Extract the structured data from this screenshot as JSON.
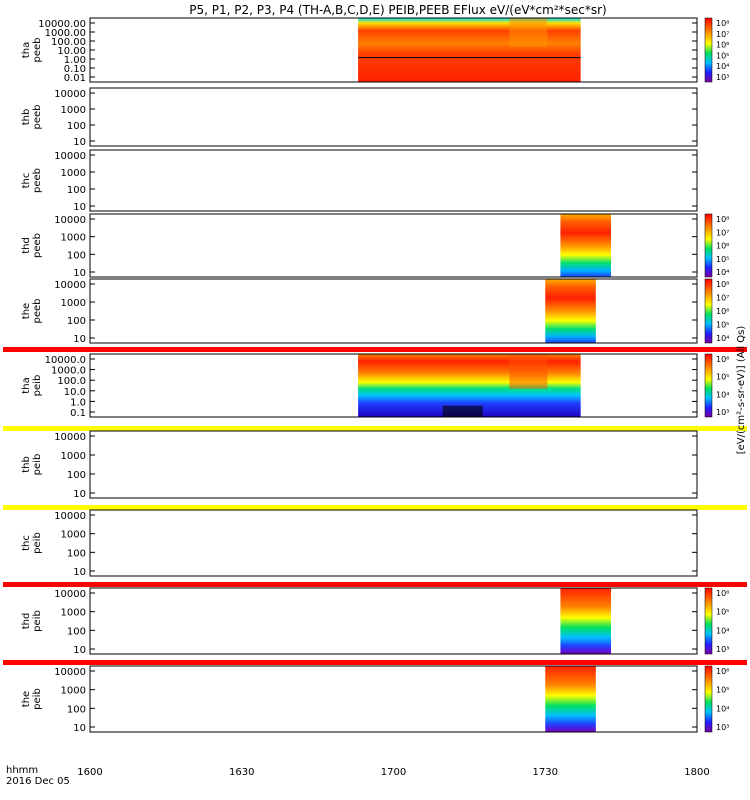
{
  "chart_data": {
    "type": "heatmap",
    "title": "P5, P1, P2, P3, P4 (TH-A,B,C,D,E) PEIB,PEEB EFlux eV/(eV*cm²*sec*sr)",
    "xlabel": "hhmm",
    "date_label": "2016 Dec 05",
    "x_ticks": [
      "1600",
      "1630",
      "1700",
      "1730",
      "1800"
    ],
    "x_range": [
      "16:00",
      "18:00"
    ],
    "colorbar_label": "[eV/(cm²-s-sr-eV)] (All Qs)",
    "panels": [
      {
        "probe": "tha",
        "product": "peeb",
        "y_ticks": [
          "10000.00",
          "1000.00",
          "100.00",
          "10.00",
          "1.00",
          "0.10",
          "0.01"
        ],
        "data_interval": [
          "16:53",
          "17:37"
        ],
        "colorbar_ticks": [
          "10⁸",
          "10⁷",
          "10⁶",
          "10⁵",
          "10⁴",
          "10³"
        ],
        "status_bar": ""
      },
      {
        "probe": "thb",
        "product": "peeb",
        "y_ticks": [
          "10000",
          "1000",
          "100",
          "10"
        ],
        "data_interval": null,
        "colorbar_ticks": [],
        "status_bar": ""
      },
      {
        "probe": "thc",
        "product": "peeb",
        "y_ticks": [
          "10000",
          "1000",
          "100",
          "10"
        ],
        "data_interval": null,
        "colorbar_ticks": [],
        "status_bar": ""
      },
      {
        "probe": "thd",
        "product": "peeb",
        "y_ticks": [
          "10000",
          "1000",
          "100",
          "10"
        ],
        "data_interval": [
          "17:33",
          "17:43"
        ],
        "colorbar_ticks": [
          "10⁸",
          "10⁷",
          "10⁶",
          "10⁵",
          "10⁴"
        ],
        "status_bar": ""
      },
      {
        "probe": "the",
        "product": "peeb",
        "y_ticks": [
          "10000",
          "1000",
          "100",
          "10"
        ],
        "data_interval": [
          "17:30",
          "17:40"
        ],
        "colorbar_ticks": [
          "10⁸",
          "10⁷",
          "10⁶",
          "10⁵",
          "10⁴"
        ],
        "status_bar": "red"
      },
      {
        "probe": "tha",
        "product": "peib",
        "y_ticks": [
          "10000.0",
          "1000.0",
          "100.0",
          "10.0",
          "1.0",
          "0.1"
        ],
        "data_interval": [
          "16:53",
          "17:37"
        ],
        "colorbar_ticks": [
          "10⁶",
          "10⁵",
          "10⁴",
          "10³"
        ],
        "status_bar": "yellow"
      },
      {
        "probe": "thb",
        "product": "peib",
        "y_ticks": [
          "10000",
          "1000",
          "100",
          "10"
        ],
        "data_interval": null,
        "colorbar_ticks": [],
        "status_bar": "yellow"
      },
      {
        "probe": "thc",
        "product": "peib",
        "y_ticks": [
          "10000",
          "1000",
          "100",
          "10"
        ],
        "data_interval": null,
        "colorbar_ticks": [],
        "status_bar": "red"
      },
      {
        "probe": "thd",
        "product": "peib",
        "y_ticks": [
          "10000",
          "1000",
          "100",
          "10"
        ],
        "data_interval": [
          "17:33",
          "17:43"
        ],
        "colorbar_ticks": [
          "10⁶",
          "10⁵",
          "10⁴",
          "10³"
        ],
        "status_bar": "red"
      },
      {
        "probe": "the",
        "product": "peib",
        "y_ticks": [
          "10000",
          "1000",
          "100",
          "10"
        ],
        "data_interval": [
          "17:30",
          "17:40"
        ],
        "colorbar_ticks": [
          "10⁶",
          "10⁵",
          "10⁴",
          "10³"
        ],
        "status_bar": ""
      }
    ],
    "colors": {
      "red": "#ff0000",
      "yellow": "#ffff00",
      "orange": "#ff8000"
    }
  }
}
